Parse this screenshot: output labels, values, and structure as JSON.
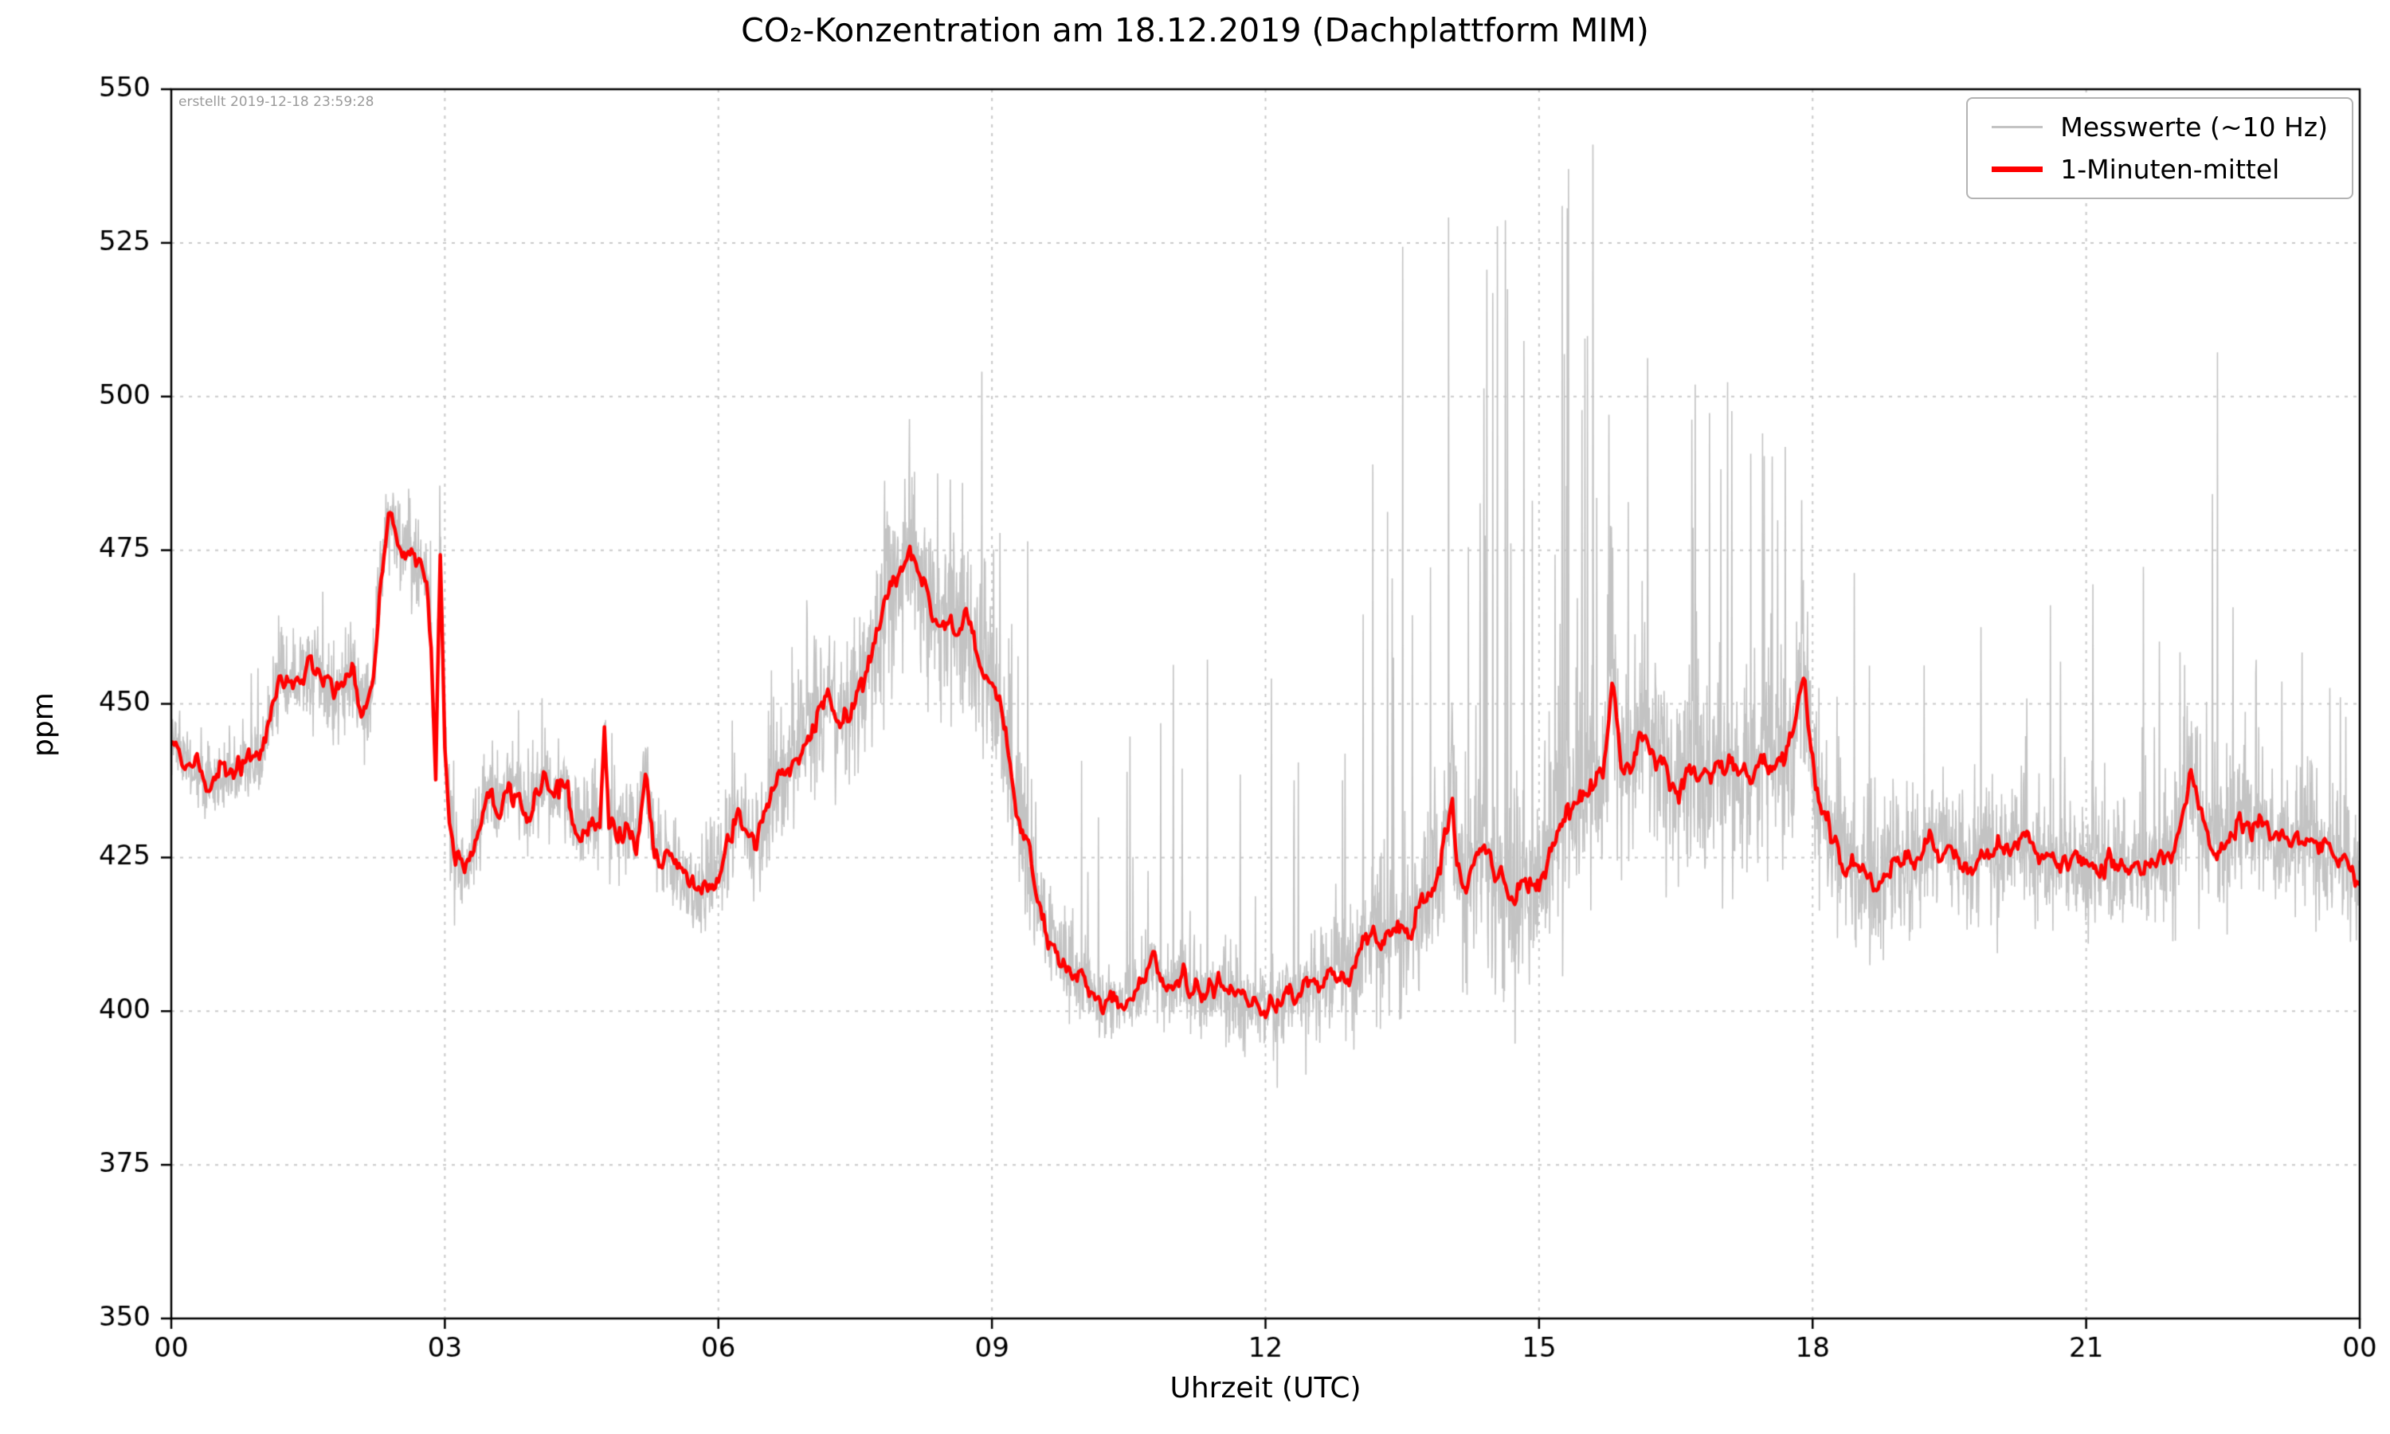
{
  "chart_data": {
    "type": "line",
    "title": "CO₂-Konzentration am 18.12.2019 (Dachplattform MIM)",
    "xlabel": "Uhrzeit (UTC)",
    "ylabel": "ppm",
    "annotation": "erstellt 2019-12-18 23:59:28",
    "xlim": [
      0,
      24
    ],
    "ylim": [
      350,
      550
    ],
    "xticks": [
      0,
      3,
      6,
      9,
      12,
      15,
      18,
      21,
      24
    ],
    "xtick_labels": [
      "00",
      "03",
      "06",
      "09",
      "12",
      "15",
      "18",
      "21",
      "00"
    ],
    "yticks": [
      350,
      375,
      400,
      425,
      450,
      475,
      500,
      525,
      550
    ],
    "grid": "dashed",
    "grid_color": "#c9c9c9",
    "legend_position": "upper-right",
    "series": [
      {
        "name": "Messwerte (~10 Hz)",
        "color": "#c3c3c3",
        "type": "noise_around_mean",
        "envelope_columns": [
          "t_hours",
          "sigma_ppm",
          "spike_probability",
          "spike_max_ppm"
        ],
        "envelope": [
          [
            0,
            3,
            0.02,
            12
          ],
          [
            1.5,
            4,
            0.03,
            14
          ],
          [
            2.5,
            4,
            0.02,
            12
          ],
          [
            3.2,
            4,
            0.04,
            18
          ],
          [
            4.5,
            4,
            0.04,
            16
          ],
          [
            5.5,
            4,
            0.03,
            14
          ],
          [
            6.3,
            5,
            0.05,
            20
          ],
          [
            7.0,
            6,
            0.06,
            22
          ],
          [
            7.8,
            7,
            0.07,
            28
          ],
          [
            8.6,
            7,
            0.1,
            45
          ],
          [
            9.2,
            6,
            0.08,
            55
          ],
          [
            10.0,
            3,
            0.05,
            40
          ],
          [
            11.0,
            3,
            0.06,
            55
          ],
          [
            12.0,
            3.5,
            0.07,
            70
          ],
          [
            12.8,
            4,
            0.09,
            90
          ],
          [
            13.5,
            6,
            0.12,
            115
          ],
          [
            14.2,
            8,
            0.14,
            122
          ],
          [
            15.0,
            8,
            0.14,
            110
          ],
          [
            15.8,
            8,
            0.14,
            100
          ],
          [
            16.5,
            8,
            0.12,
            75
          ],
          [
            17.2,
            8,
            0.12,
            75
          ],
          [
            18.0,
            7,
            0.12,
            90
          ],
          [
            18.7,
            6,
            0.08,
            55
          ],
          [
            19.5,
            5,
            0.07,
            45
          ],
          [
            20.3,
            5,
            0.08,
            58
          ],
          [
            21.0,
            5,
            0.06,
            45
          ],
          [
            21.8,
            5,
            0.07,
            50
          ],
          [
            22.4,
            6,
            0.1,
            85
          ],
          [
            23.0,
            5,
            0.07,
            45
          ],
          [
            24,
            5,
            0.05,
            30
          ]
        ]
      },
      {
        "name": "1-Minuten-mittel",
        "color": "#ff0000",
        "type": "line",
        "points_columns": [
          "t_hours",
          "ppm"
        ],
        "points": [
          [
            0.0,
            444
          ],
          [
            0.2,
            441
          ],
          [
            0.4,
            437
          ],
          [
            0.6,
            438
          ],
          [
            0.8,
            440
          ],
          [
            1.0,
            442
          ],
          [
            1.1,
            450
          ],
          [
            1.2,
            455
          ],
          [
            1.4,
            453
          ],
          [
            1.6,
            456
          ],
          [
            1.8,
            452
          ],
          [
            2.0,
            455
          ],
          [
            2.1,
            447
          ],
          [
            2.2,
            452
          ],
          [
            2.3,
            470
          ],
          [
            2.4,
            481
          ],
          [
            2.5,
            477
          ],
          [
            2.6,
            474
          ],
          [
            2.7,
            472
          ],
          [
            2.8,
            470
          ],
          [
            2.85,
            460
          ],
          [
            2.9,
            437
          ],
          [
            2.95,
            475
          ],
          [
            3.0,
            445
          ],
          [
            3.05,
            432
          ],
          [
            3.1,
            424
          ],
          [
            3.2,
            422
          ],
          [
            3.3,
            426
          ],
          [
            3.4,
            430
          ],
          [
            3.5,
            436
          ],
          [
            3.6,
            434
          ],
          [
            3.7,
            437
          ],
          [
            3.8,
            435
          ],
          [
            3.9,
            432
          ],
          [
            4.0,
            436
          ],
          [
            4.1,
            438
          ],
          [
            4.2,
            434
          ],
          [
            4.3,
            437
          ],
          [
            4.4,
            432
          ],
          [
            4.5,
            430
          ],
          [
            4.6,
            432
          ],
          [
            4.7,
            429
          ],
          [
            4.75,
            447
          ],
          [
            4.8,
            432
          ],
          [
            4.9,
            428
          ],
          [
            5.0,
            430
          ],
          [
            5.1,
            428
          ],
          [
            5.2,
            440
          ],
          [
            5.3,
            428
          ],
          [
            5.4,
            425
          ],
          [
            5.5,
            424
          ],
          [
            5.6,
            422
          ],
          [
            5.7,
            420
          ],
          [
            5.8,
            418
          ],
          [
            5.9,
            421
          ],
          [
            6.0,
            423
          ],
          [
            6.1,
            428
          ],
          [
            6.2,
            432
          ],
          [
            6.3,
            429
          ],
          [
            6.4,
            427
          ],
          [
            6.5,
            431
          ],
          [
            6.6,
            434
          ],
          [
            6.7,
            438
          ],
          [
            6.8,
            441
          ],
          [
            6.9,
            443
          ],
          [
            7.0,
            445
          ],
          [
            7.1,
            448
          ],
          [
            7.2,
            450
          ],
          [
            7.3,
            448
          ],
          [
            7.4,
            447
          ],
          [
            7.5,
            450
          ],
          [
            7.6,
            453
          ],
          [
            7.7,
            458
          ],
          [
            7.8,
            465
          ],
          [
            7.9,
            470
          ],
          [
            8.0,
            473
          ],
          [
            8.1,
            474
          ],
          [
            8.2,
            471
          ],
          [
            8.3,
            466
          ],
          [
            8.4,
            462
          ],
          [
            8.5,
            465
          ],
          [
            8.6,
            464
          ],
          [
            8.7,
            465
          ],
          [
            8.8,
            460
          ],
          [
            8.9,
            457
          ],
          [
            9.0,
            453
          ],
          [
            9.1,
            448
          ],
          [
            9.2,
            440
          ],
          [
            9.3,
            432
          ],
          [
            9.4,
            425
          ],
          [
            9.5,
            418
          ],
          [
            9.6,
            413
          ],
          [
            9.7,
            410
          ],
          [
            9.8,
            408
          ],
          [
            9.9,
            406
          ],
          [
            10.0,
            405
          ],
          [
            10.2,
            402
          ],
          [
            10.4,
            402
          ],
          [
            10.6,
            402
          ],
          [
            10.75,
            408
          ],
          [
            10.9,
            402
          ],
          [
            11.1,
            406
          ],
          [
            11.3,
            402
          ],
          [
            11.5,
            404
          ],
          [
            11.7,
            401
          ],
          [
            11.9,
            402
          ],
          [
            12.0,
            400
          ],
          [
            12.2,
            402
          ],
          [
            12.4,
            404
          ],
          [
            12.6,
            405
          ],
          [
            12.8,
            406
          ],
          [
            13.0,
            408
          ],
          [
            13.1,
            412
          ],
          [
            13.3,
            412
          ],
          [
            13.5,
            413
          ],
          [
            13.7,
            416
          ],
          [
            13.9,
            424
          ],
          [
            14.0,
            430
          ],
          [
            14.05,
            436
          ],
          [
            14.1,
            425
          ],
          [
            14.2,
            420
          ],
          [
            14.3,
            424
          ],
          [
            14.4,
            428
          ],
          [
            14.5,
            424
          ],
          [
            14.6,
            420
          ],
          [
            14.7,
            418
          ],
          [
            14.8,
            422
          ],
          [
            15.0,
            422
          ],
          [
            15.1,
            426
          ],
          [
            15.3,
            432
          ],
          [
            15.5,
            435
          ],
          [
            15.7,
            440
          ],
          [
            15.75,
            448
          ],
          [
            15.8,
            455
          ],
          [
            15.9,
            440
          ],
          [
            16.0,
            438
          ],
          [
            16.1,
            445
          ],
          [
            16.3,
            442
          ],
          [
            16.5,
            436
          ],
          [
            16.7,
            440
          ],
          [
            16.9,
            437
          ],
          [
            17.1,
            439
          ],
          [
            17.3,
            438
          ],
          [
            17.5,
            440
          ],
          [
            17.7,
            442
          ],
          [
            17.8,
            446
          ],
          [
            17.9,
            455
          ],
          [
            18.0,
            440
          ],
          [
            18.1,
            432
          ],
          [
            18.3,
            426
          ],
          [
            18.5,
            423
          ],
          [
            18.7,
            420
          ],
          [
            18.9,
            424
          ],
          [
            19.1,
            425
          ],
          [
            19.3,
            427
          ],
          [
            19.5,
            426
          ],
          [
            19.7,
            424
          ],
          [
            19.9,
            426
          ],
          [
            20.1,
            426
          ],
          [
            20.3,
            427
          ],
          [
            20.5,
            424
          ],
          [
            20.7,
            425
          ],
          [
            20.9,
            424
          ],
          [
            21.1,
            423
          ],
          [
            21.3,
            424
          ],
          [
            21.5,
            424
          ],
          [
            21.7,
            423
          ],
          [
            21.9,
            425
          ],
          [
            22.0,
            428
          ],
          [
            22.1,
            434
          ],
          [
            22.15,
            440
          ],
          [
            22.3,
            429
          ],
          [
            22.5,
            427
          ],
          [
            22.7,
            431
          ],
          [
            22.9,
            429
          ],
          [
            23.1,
            428
          ],
          [
            23.3,
            428
          ],
          [
            23.5,
            428
          ],
          [
            23.7,
            426
          ],
          [
            23.9,
            424
          ],
          [
            24.0,
            422
          ]
        ]
      }
    ]
  }
}
